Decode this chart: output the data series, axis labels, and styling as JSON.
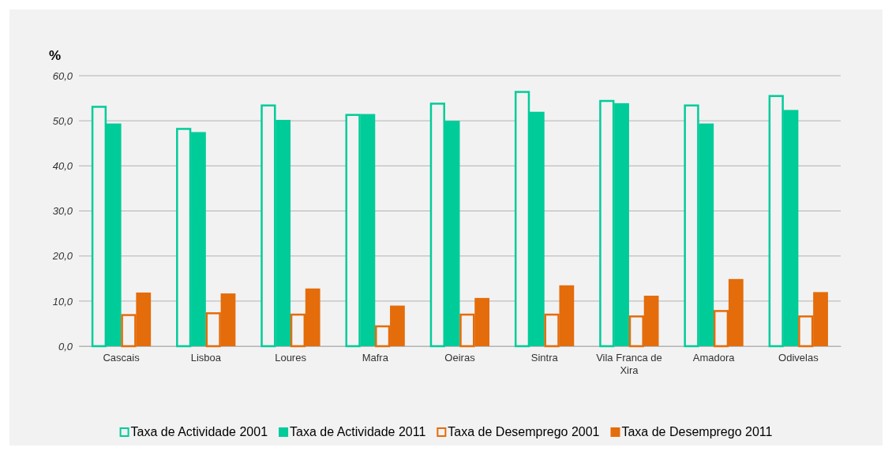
{
  "chart_data": {
    "type": "bar",
    "ylabel": "%",
    "categories": [
      "Cascais",
      "Lisboa",
      "Loures",
      "Mafra",
      "Oeiras",
      "Sintra",
      "Vila Franca de Xira",
      "Amadora",
      "Odivelas"
    ],
    "series": [
      {
        "name": "Taxa de Actividade 2001",
        "color": "#00cc99",
        "values": [
          53.1,
          48.2,
          53.4,
          51.3,
          53.8,
          56.4,
          54.4,
          53.4,
          55.5
        ]
      },
      {
        "name": "Taxa de Actividade 2011",
        "color": "#00cc99",
        "values": [
          49.4,
          47.5,
          50.2,
          51.5,
          50.0,
          52.0,
          53.9,
          49.4,
          52.4
        ]
      },
      {
        "name": "Taxa de Desemprego 2001",
        "color": "#e46c0a",
        "values": [
          6.9,
          7.3,
          7.0,
          4.4,
          7.0,
          7.0,
          6.6,
          7.8,
          6.6
        ]
      },
      {
        "name": "Taxa de Desemprego 2011",
        "color": "#e46c0a",
        "values": [
          11.9,
          11.7,
          12.8,
          9.0,
          10.7,
          13.5,
          11.2,
          14.9,
          12.0
        ]
      }
    ],
    "ylim": [
      0,
      60
    ],
    "yticks": [
      {
        "value": 0,
        "label": "0,0"
      },
      {
        "value": 10,
        "label": "10,0"
      },
      {
        "value": 20,
        "label": "20,0"
      },
      {
        "value": 30,
        "label": "30,0"
      },
      {
        "value": 40,
        "label": "40,0"
      },
      {
        "value": 50,
        "label": "50,0"
      },
      {
        "value": 60,
        "label": "60,0"
      }
    ],
    "grid": "y",
    "legend": "bottom"
  }
}
